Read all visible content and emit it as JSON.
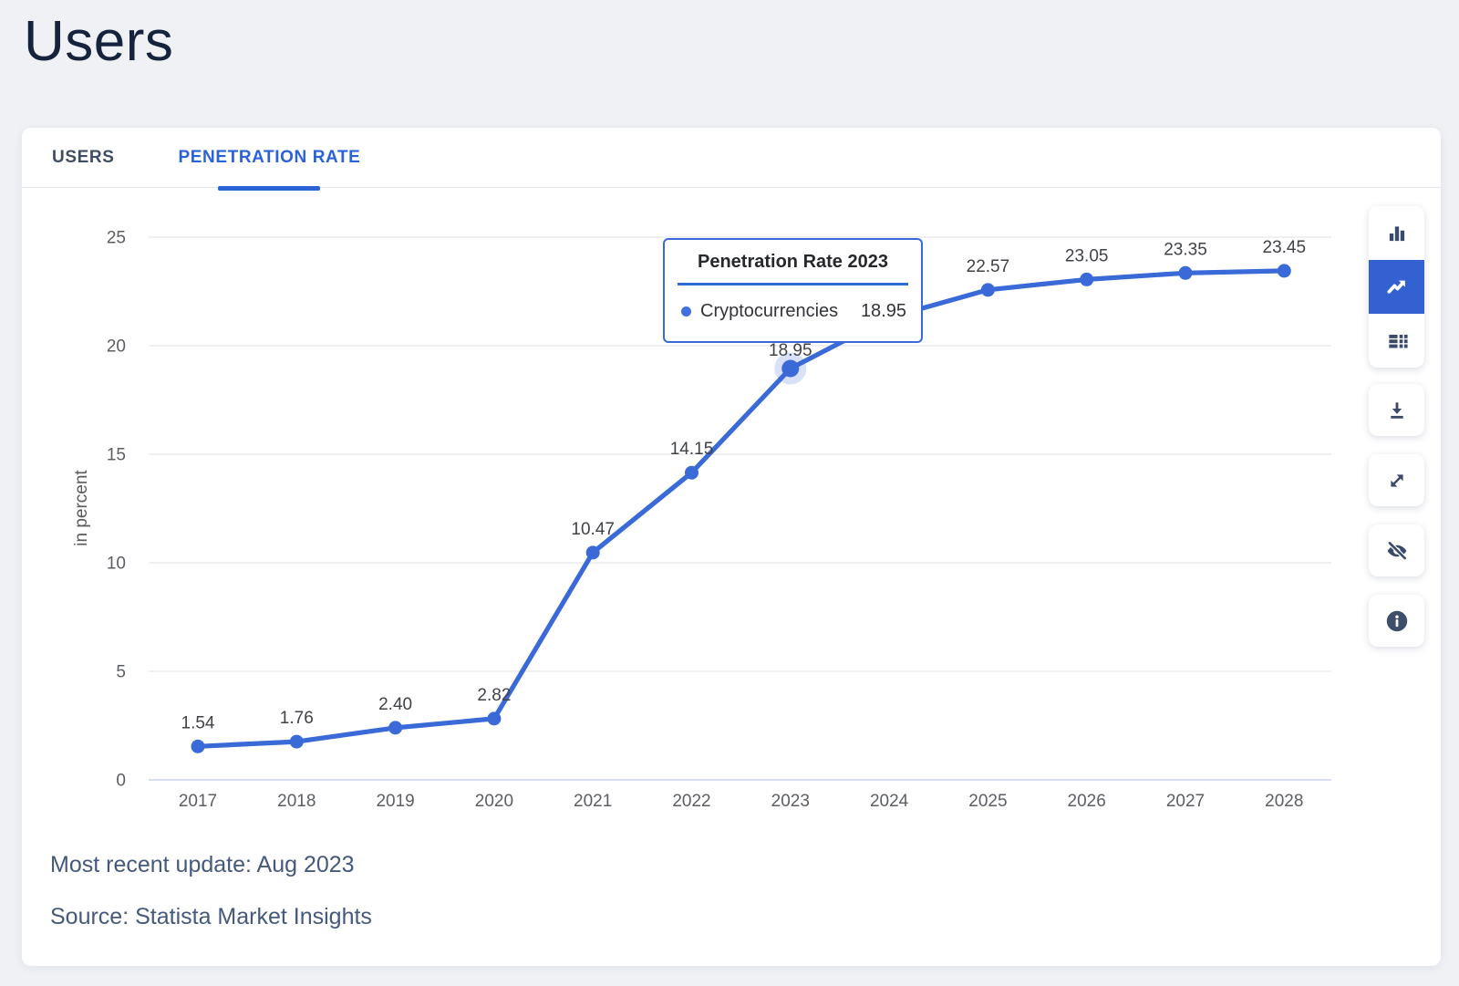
{
  "page_title": "Users",
  "tabs": [
    {
      "label": "USERS",
      "active": false
    },
    {
      "label": "PENETRATION RATE",
      "active": true
    }
  ],
  "tooltip": {
    "title": "Penetration Rate 2023",
    "series_label": "Cryptocurrencies",
    "value": "18.95"
  },
  "footer": {
    "updated": "Most recent update: Aug 2023",
    "source": "Source: Statista Market Insights"
  },
  "toolbar": {
    "buttons": [
      "bar-chart",
      "line-chart",
      "table",
      "download",
      "fullscreen",
      "hide",
      "info"
    ],
    "active_button": "line-chart"
  },
  "colors": {
    "accent": "#3a6ad8",
    "tab_active": "#2c62d8",
    "grid": "#ebebee",
    "zero_line": "#c9d4ec",
    "tick_text": "#5b5e63",
    "data_label_text": "#3f4247",
    "axis_title_text": "#5a5a5a",
    "icon_navy": "#3a4a68"
  },
  "chart_data": {
    "type": "line",
    "title": "Penetration Rate",
    "series": [
      {
        "name": "Cryptocurrencies",
        "values": [
          1.54,
          1.76,
          2.4,
          2.82,
          10.47,
          14.15,
          18.95,
          21.3,
          22.57,
          23.05,
          23.35,
          23.45
        ]
      }
    ],
    "x": [
      "2017",
      "2018",
      "2019",
      "2020",
      "2021",
      "2022",
      "2023",
      "2024",
      "2025",
      "2026",
      "2027",
      "2028"
    ],
    "point_labels": [
      "1.54",
      "1.76",
      "2.40",
      "2.82",
      "10.47",
      "14.15",
      "18.95",
      "",
      "22.57",
      "23.05",
      "23.35",
      "23.45"
    ],
    "estimated_indices": [
      7
    ],
    "hover_index": 6,
    "ylabel": "in percent",
    "ylim": [
      0,
      25
    ],
    "yticks": [
      0,
      5,
      10,
      15,
      20,
      25
    ],
    "grid": true,
    "legend": "none"
  }
}
